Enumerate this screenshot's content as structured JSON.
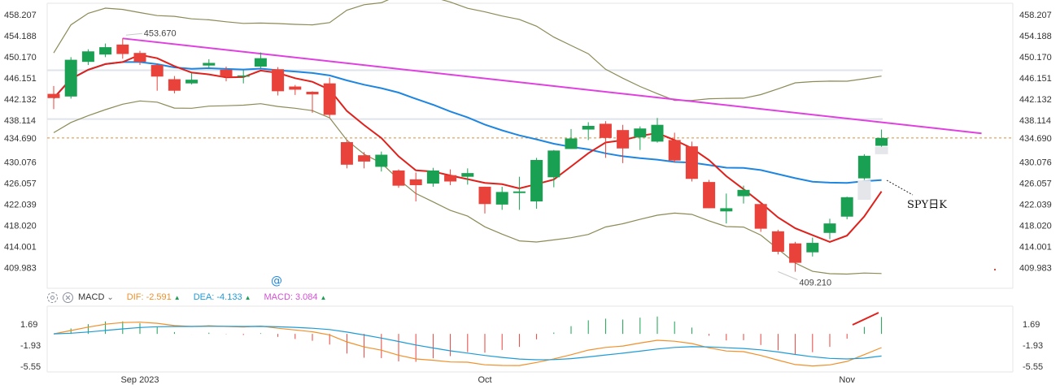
{
  "chart_data": {
    "type": "candlestick",
    "ticker_note": "SPY日K",
    "price_axis": {
      "ticks": [
        "458.207",
        "454.188",
        "450.170",
        "446.151",
        "442.132",
        "438.114",
        "434.690",
        "430.076",
        "426.057",
        "422.039",
        "418.020",
        "414.001",
        "409.983"
      ],
      "tick_values": [
        458.207,
        454.188,
        450.17,
        446.151,
        442.132,
        438.114,
        434.69,
        430.076,
        426.057,
        422.039,
        418.02,
        414.001,
        409.983
      ],
      "current_price_label": "434.690",
      "current_price": 434.69,
      "ylim": [
        407.0,
        460.0
      ]
    },
    "x_labels": [
      {
        "label": "Sep 2023",
        "index": 5
      },
      {
        "label": "Oct",
        "index": 25
      },
      {
        "label": "Nov",
        "index": 46
      }
    ],
    "annotations": {
      "high_label": "453.670",
      "high_value": 453.67,
      "high_index": 4,
      "low_label": "409.210",
      "low_value": 409.21,
      "low_index": 42
    },
    "candles": [
      [
        443.1,
        442.3,
        444.6,
        440.2
      ],
      [
        442.6,
        449.6,
        450.1,
        442.2
      ],
      [
        449.2,
        451.2,
        451.6,
        448.6
      ],
      [
        450.6,
        452.0,
        452.7,
        450.1
      ],
      [
        452.5,
        450.7,
        453.7,
        449.8
      ],
      [
        450.9,
        449.2,
        451.3,
        448.6
      ],
      [
        448.6,
        446.4,
        448.9,
        443.7
      ],
      [
        445.9,
        443.7,
        446.5,
        443.2
      ],
      [
        445.1,
        445.8,
        447.1,
        444.9
      ],
      [
        448.5,
        449.0,
        449.7,
        448.1
      ],
      [
        447.7,
        446.4,
        448.3,
        445.5
      ],
      [
        446.5,
        446.6,
        447.6,
        445.1
      ],
      [
        448.3,
        449.9,
        451.0,
        448.0
      ],
      [
        447.8,
        443.6,
        448.2,
        442.8
      ],
      [
        444.5,
        443.9,
        444.8,
        442.9
      ],
      [
        443.5,
        443.0,
        443.6,
        439.5
      ],
      [
        445.1,
        439.1,
        446.2,
        438.6
      ],
      [
        433.9,
        429.6,
        434.3,
        428.9
      ],
      [
        431.4,
        430.2,
        432.0,
        428.9
      ],
      [
        429.2,
        431.5,
        432.1,
        428.3
      ],
      [
        428.5,
        425.6,
        428.7,
        425.2
      ],
      [
        426.8,
        425.7,
        428.1,
        422.6
      ],
      [
        426.0,
        428.5,
        429.0,
        425.4
      ],
      [
        427.6,
        426.4,
        428.7,
        425.7
      ],
      [
        427.3,
        428.0,
        428.9,
        425.8
      ],
      [
        425.4,
        422.1,
        425.4,
        420.3
      ],
      [
        422.0,
        424.4,
        425.4,
        421.0
      ],
      [
        424.2,
        424.5,
        427.3,
        421.0
      ],
      [
        422.6,
        430.5,
        430.9,
        421.2
      ],
      [
        427.2,
        432.3,
        432.4,
        425.3
      ],
      [
        432.6,
        434.6,
        436.4,
        433.7
      ],
      [
        436.3,
        437.0,
        437.7,
        434.3
      ],
      [
        437.4,
        434.7,
        437.9,
        430.9
      ],
      [
        436.2,
        432.7,
        437.2,
        429.9
      ],
      [
        434.8,
        436.5,
        436.9,
        432.4
      ],
      [
        434.0,
        437.2,
        438.5,
        433.8
      ],
      [
        434.3,
        430.4,
        435.7,
        430.0
      ],
      [
        433.1,
        426.9,
        434.0,
        426.4
      ],
      [
        426.3,
        421.3,
        426.7,
        421.3
      ],
      [
        420.7,
        421.3,
        424.1,
        418.4
      ],
      [
        423.6,
        424.8,
        425.6,
        422.2
      ],
      [
        422.1,
        417.4,
        422.4,
        416.8
      ],
      [
        416.9,
        413.0,
        417.2,
        412.5
      ],
      [
        414.6,
        410.9,
        414.9,
        409.2
      ],
      [
        412.9,
        414.7,
        415.7,
        412.1
      ],
      [
        416.6,
        418.4,
        419.3,
        415.4
      ],
      [
        419.7,
        423.4,
        423.5,
        419.2
      ],
      [
        427.0,
        431.3,
        431.6,
        426.7
      ],
      [
        433.2,
        434.7,
        436.3,
        433.0
      ]
    ],
    "indicator": {
      "name": "MACD",
      "dif_label": "DIF:",
      "dif_value": "-2.591",
      "dea_label": "DEA:",
      "dea_value": "-4.133",
      "macd_label": "MACD:",
      "macd_value": "3.084",
      "ticks": [
        "1.69",
        "-1.93",
        "-5.55"
      ],
      "tick_values": [
        1.69,
        -1.93,
        -5.55
      ],
      "ylim": [
        -7.0,
        4.0
      ]
    }
  },
  "colors": {
    "up": "#1aa052",
    "down": "#e8423b",
    "ma_fast": "#e0201a",
    "ma_slow": "#1e86e0",
    "bands": "#8c8a56",
    "trendline": "#e040e0",
    "dif": "#f0902a",
    "dea": "#1e9bd6",
    "price_line": "#d98f3a"
  },
  "icons": [
    "gear-icon",
    "close-icon",
    "chevron-down-icon",
    "at-sign-icon"
  ]
}
